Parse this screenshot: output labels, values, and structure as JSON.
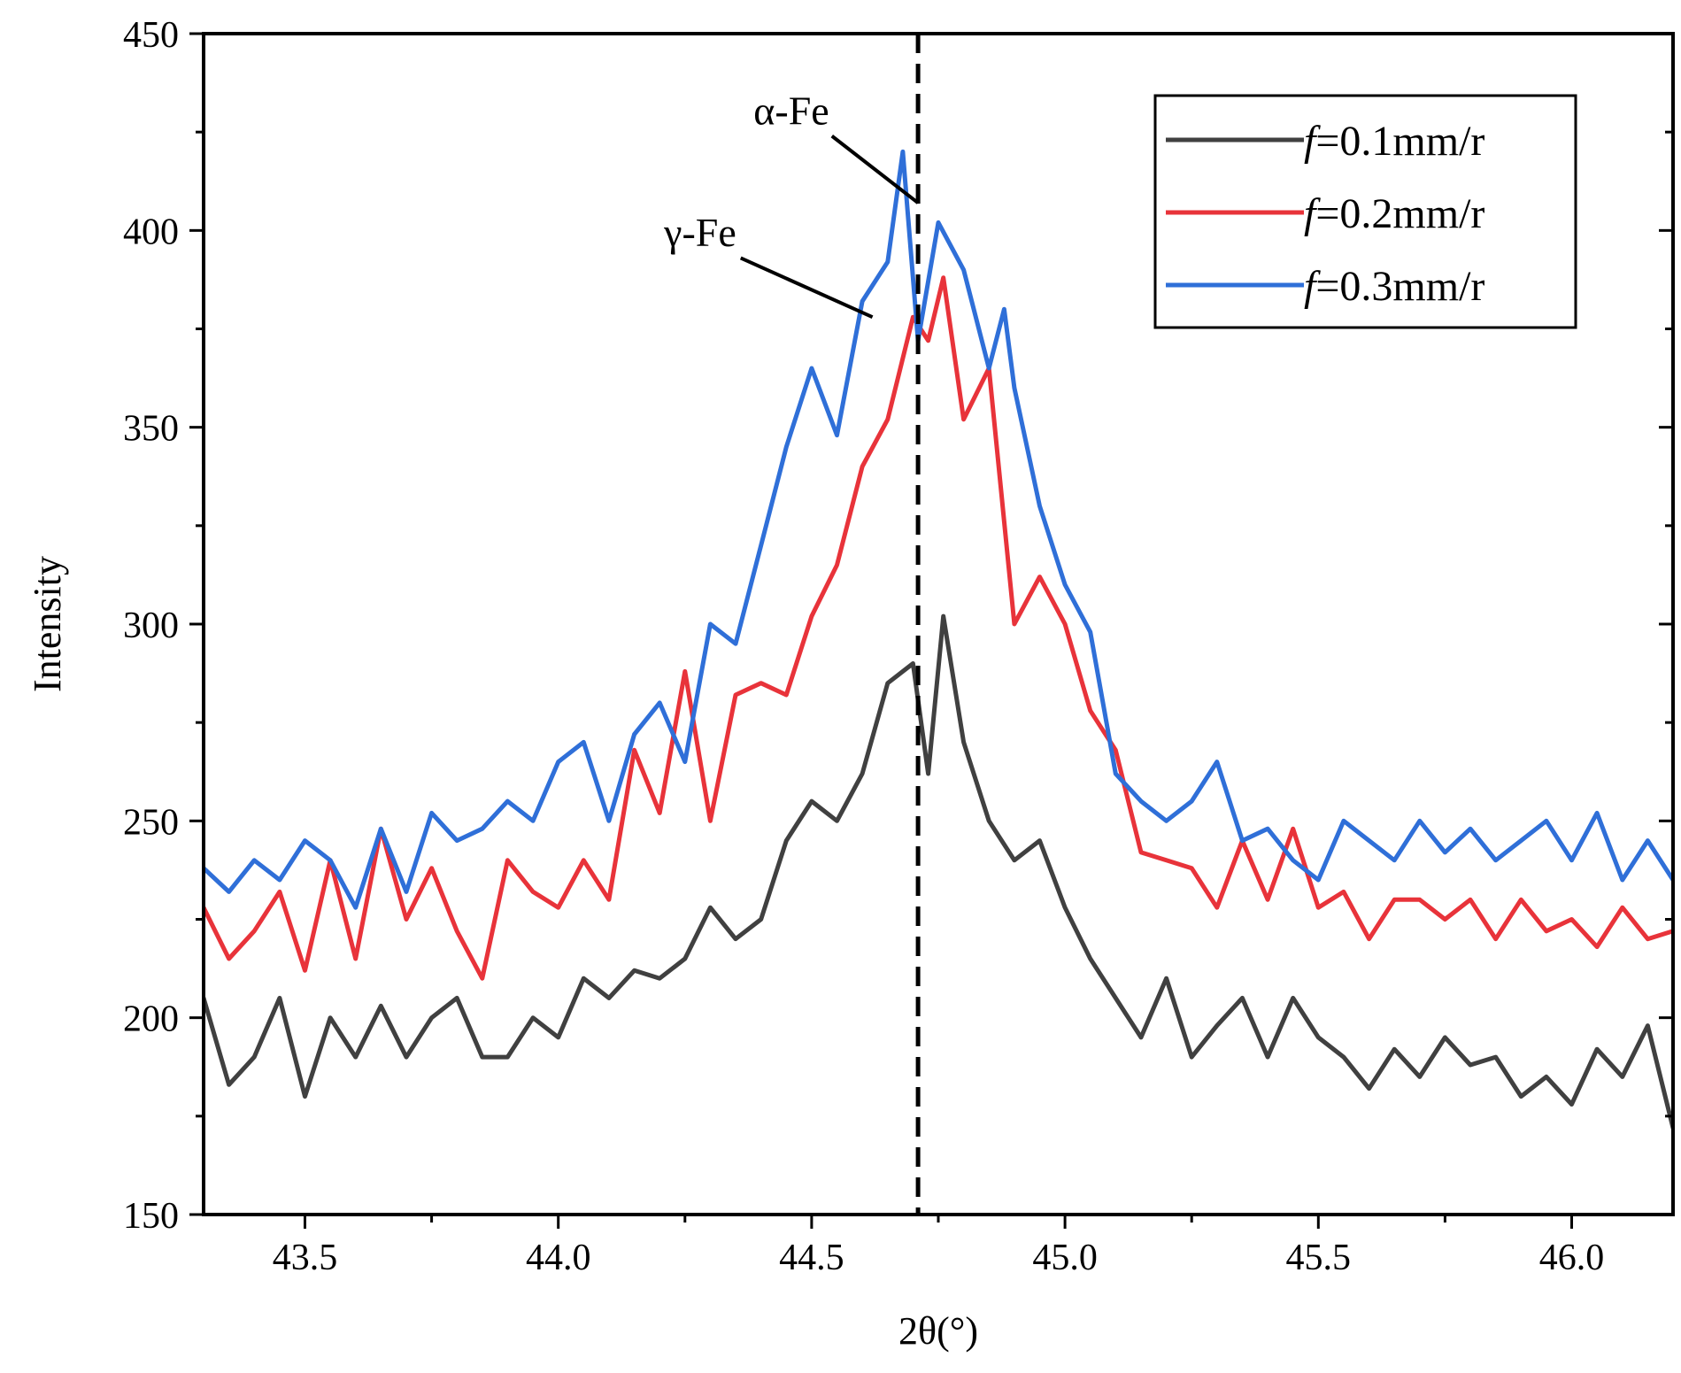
{
  "chart_data": {
    "type": "line",
    "title": "",
    "xlabel": "2θ(°)",
    "ylabel": "Intensity",
    "xlim": [
      43.3,
      46.2
    ],
    "ylim": [
      150,
      450
    ],
    "x_ticks": [
      43.5,
      44.0,
      44.5,
      45.0,
      45.5,
      46.0
    ],
    "x_tick_labels": [
      "43.5",
      "44.0",
      "44.5",
      "45.0",
      "45.5",
      "46.0"
    ],
    "y_ticks": [
      150,
      200,
      250,
      300,
      350,
      400,
      450
    ],
    "y_tick_labels": [
      "150",
      "200",
      "250",
      "300",
      "350",
      "400",
      "450"
    ],
    "grid": false,
    "legend_position": "top-right",
    "reference_line": {
      "x": 44.71,
      "style": "dashed",
      "color": "#000000"
    },
    "annotations": [
      {
        "label": "α-Fe",
        "text_at": [
          44.46,
          427
        ],
        "arrow_from": [
          44.54,
          424
        ],
        "arrow_to": [
          44.71,
          407
        ]
      },
      {
        "label": "γ-Fe",
        "text_at": [
          44.28,
          396
        ],
        "arrow_from": [
          44.36,
          393
        ],
        "arrow_to": [
          44.62,
          378
        ]
      }
    ],
    "series": [
      {
        "name": "f=0.1mm/r",
        "legend_italic": "f",
        "legend_rest": "=0.1mm/r",
        "color": "#404040",
        "x": [
          43.3,
          43.35,
          43.4,
          43.45,
          43.5,
          43.55,
          43.6,
          43.65,
          43.7,
          43.75,
          43.8,
          43.85,
          43.9,
          43.95,
          44.0,
          44.05,
          44.1,
          44.15,
          44.2,
          44.25,
          44.3,
          44.35,
          44.4,
          44.45,
          44.5,
          44.55,
          44.6,
          44.65,
          44.7,
          44.73,
          44.76,
          44.8,
          44.85,
          44.9,
          44.95,
          45.0,
          45.05,
          45.1,
          45.15,
          45.2,
          45.25,
          45.3,
          45.35,
          45.4,
          45.45,
          45.5,
          45.55,
          45.6,
          45.65,
          45.7,
          45.75,
          45.8,
          45.85,
          45.9,
          45.95,
          46.0,
          46.05,
          46.1,
          46.15,
          46.2
        ],
        "y": [
          205,
          183,
          190,
          205,
          180,
          200,
          190,
          203,
          190,
          200,
          205,
          190,
          190,
          200,
          195,
          210,
          205,
          212,
          210,
          215,
          228,
          220,
          225,
          245,
          255,
          250,
          262,
          285,
          290,
          262,
          302,
          270,
          250,
          240,
          245,
          228,
          215,
          205,
          195,
          210,
          190,
          198,
          205,
          190,
          205,
          195,
          190,
          182,
          192,
          185,
          195,
          188,
          190,
          180,
          185,
          178,
          192,
          185,
          198,
          172
        ]
      },
      {
        "name": "f=0.2mm/r",
        "legend_italic": "f",
        "legend_rest": "=0.2mm/r",
        "color": "#e8333a",
        "x": [
          43.3,
          43.35,
          43.4,
          43.45,
          43.5,
          43.55,
          43.6,
          43.65,
          43.7,
          43.75,
          43.8,
          43.85,
          43.9,
          43.95,
          44.0,
          44.05,
          44.1,
          44.15,
          44.2,
          44.25,
          44.3,
          44.35,
          44.4,
          44.45,
          44.5,
          44.55,
          44.6,
          44.65,
          44.7,
          44.73,
          44.76,
          44.8,
          44.85,
          44.9,
          44.95,
          45.0,
          45.05,
          45.1,
          45.15,
          45.2,
          45.25,
          45.3,
          45.35,
          45.4,
          45.45,
          45.5,
          45.55,
          45.6,
          45.65,
          45.7,
          45.75,
          45.8,
          45.85,
          45.9,
          45.95,
          46.0,
          46.05,
          46.1,
          46.15,
          46.2
        ],
        "y": [
          228,
          215,
          222,
          232,
          212,
          240,
          215,
          248,
          225,
          238,
          222,
          210,
          240,
          232,
          228,
          240,
          230,
          268,
          252,
          288,
          250,
          282,
          285,
          282,
          302,
          315,
          340,
          352,
          378,
          372,
          388,
          352,
          365,
          300,
          312,
          300,
          278,
          268,
          242,
          240,
          238,
          228,
          245,
          230,
          248,
          228,
          232,
          220,
          230,
          230,
          225,
          230,
          220,
          230,
          222,
          225,
          218,
          228,
          220,
          222
        ]
      },
      {
        "name": "f=0.3mm/r",
        "legend_italic": "f",
        "legend_rest": "=0.3mm/r",
        "color": "#2f6fd8",
        "x": [
          43.3,
          43.35,
          43.4,
          43.45,
          43.5,
          43.55,
          43.6,
          43.65,
          43.7,
          43.75,
          43.8,
          43.85,
          43.9,
          43.95,
          44.0,
          44.05,
          44.1,
          44.15,
          44.2,
          44.25,
          44.3,
          44.35,
          44.4,
          44.45,
          44.5,
          44.55,
          44.6,
          44.65,
          44.68,
          44.71,
          44.75,
          44.8,
          44.85,
          44.88,
          44.9,
          44.95,
          45.0,
          45.05,
          45.1,
          45.15,
          45.2,
          45.25,
          45.3,
          45.35,
          45.4,
          45.45,
          45.5,
          45.55,
          45.6,
          45.65,
          45.7,
          45.75,
          45.8,
          45.85,
          45.9,
          45.95,
          46.0,
          46.05,
          46.1,
          46.15,
          46.2
        ],
        "y": [
          238,
          232,
          240,
          235,
          245,
          240,
          228,
          248,
          232,
          252,
          245,
          248,
          255,
          250,
          265,
          270,
          250,
          272,
          280,
          265,
          300,
          295,
          320,
          345,
          365,
          348,
          382,
          392,
          420,
          372,
          402,
          390,
          365,
          380,
          360,
          330,
          310,
          298,
          262,
          255,
          250,
          255,
          265,
          245,
          248,
          240,
          235,
          250,
          245,
          240,
          250,
          242,
          248,
          240,
          245,
          250,
          240,
          252,
          235,
          245,
          235
        ]
      }
    ]
  }
}
